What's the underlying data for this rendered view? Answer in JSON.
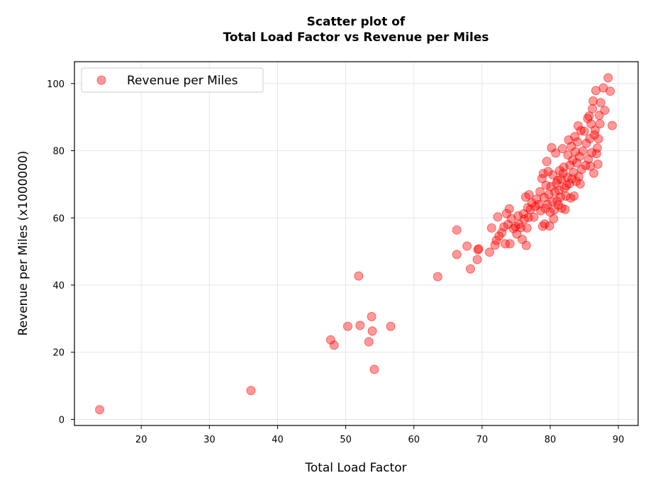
{
  "chart_data": {
    "type": "scatter",
    "title_line1": "Scatter plot of",
    "title_line2": "Total Load Factor vs Revenue per Miles",
    "xlabel": "Total Load Factor",
    "ylabel": "Revenue per Miles (x1000000)",
    "xlim": [
      10.2,
      92.9
    ],
    "ylim": [
      -1.8,
      106.5
    ],
    "xticks": [
      20,
      30,
      40,
      50,
      60,
      70,
      80,
      90
    ],
    "yticks": [
      0,
      20,
      40,
      60,
      80,
      100
    ],
    "grid": true,
    "legend_position": "upper-left",
    "colors": {
      "marker_fill": "#ff0000",
      "marker_opacity": 0.4
    },
    "series": [
      {
        "name": "Revenue per Miles",
        "points": [
          [
            13.9,
            2.9
          ],
          [
            36.1,
            8.6
          ],
          [
            47.8,
            23.7
          ],
          [
            48.3,
            22.1
          ],
          [
            50.3,
            27.7
          ],
          [
            51.9,
            42.7
          ],
          [
            52.1,
            28.0
          ],
          [
            53.4,
            23.1
          ],
          [
            53.8,
            30.6
          ],
          [
            53.9,
            26.3
          ],
          [
            54.2,
            14.9
          ],
          [
            56.6,
            27.7
          ],
          [
            63.5,
            42.5
          ],
          [
            66.3,
            56.4
          ],
          [
            66.3,
            49.1
          ],
          [
            67.8,
            51.6
          ],
          [
            68.3,
            44.8
          ],
          [
            69.3,
            47.6
          ],
          [
            69.4,
            50.5
          ],
          [
            69.5,
            50.8
          ],
          [
            71.1,
            49.8
          ],
          [
            71.4,
            57.0
          ],
          [
            71.9,
            51.9
          ],
          [
            72.1,
            53.3
          ],
          [
            72.3,
            60.3
          ],
          [
            72.5,
            54.6
          ],
          [
            72.9,
            55.6
          ],
          [
            73.2,
            57.3
          ],
          [
            73.4,
            52.3
          ],
          [
            73.6,
            61.3
          ],
          [
            73.8,
            58.0
          ],
          [
            74.0,
            62.7
          ],
          [
            74.1,
            52.3
          ],
          [
            74.3,
            59.8
          ],
          [
            74.6,
            56.8
          ],
          [
            74.9,
            57.4
          ],
          [
            75.1,
            55.2
          ],
          [
            75.3,
            60.6
          ],
          [
            75.4,
            58.1
          ],
          [
            75.7,
            57.1
          ],
          [
            75.9,
            53.6
          ],
          [
            76.1,
            61.2
          ],
          [
            76.2,
            59.6
          ],
          [
            76.4,
            66.2
          ],
          [
            76.5,
            51.8
          ],
          [
            76.6,
            57.0
          ],
          [
            76.7,
            63.0
          ],
          [
            76.8,
            60.1
          ],
          [
            76.9,
            66.9
          ],
          [
            77.1,
            62.5
          ],
          [
            77.3,
            64.5
          ],
          [
            77.6,
            60.2
          ],
          [
            77.8,
            63.4
          ],
          [
            78.0,
            65.6
          ],
          [
            78.3,
            64.0
          ],
          [
            78.5,
            67.8
          ],
          [
            78.6,
            62.1
          ],
          [
            78.8,
            71.7
          ],
          [
            78.9,
            57.5
          ],
          [
            79.0,
            73.2
          ],
          [
            79.1,
            66.1
          ],
          [
            79.2,
            58.2
          ],
          [
            79.3,
            62.8
          ],
          [
            79.4,
            69.7
          ],
          [
            79.5,
            76.8
          ],
          [
            79.6,
            64.0
          ],
          [
            79.7,
            73.8
          ],
          [
            79.8,
            67.0
          ],
          [
            79.9,
            57.6
          ],
          [
            80.0,
            61.7
          ],
          [
            80.1,
            69.3
          ],
          [
            80.2,
            80.9
          ],
          [
            80.3,
            64.9
          ],
          [
            80.4,
            72.8
          ],
          [
            80.5,
            59.7
          ],
          [
            80.6,
            62.4
          ],
          [
            80.7,
            67.7
          ],
          [
            80.8,
            79.3
          ],
          [
            80.9,
            70.3
          ],
          [
            81.0,
            65.0
          ],
          [
            81.1,
            71.2
          ],
          [
            81.2,
            63.8
          ],
          [
            81.3,
            68.2
          ],
          [
            81.4,
            74.1
          ],
          [
            81.5,
            66.2
          ],
          [
            81.6,
            71.5
          ],
          [
            81.7,
            62.9
          ],
          [
            81.8,
            80.6
          ],
          [
            81.9,
            73.3
          ],
          [
            82.0,
            75.1
          ],
          [
            82.1,
            68.9
          ],
          [
            82.2,
            62.5
          ],
          [
            82.3,
            66.5
          ],
          [
            82.4,
            69.6
          ],
          [
            82.5,
            72.1
          ],
          [
            82.6,
            78.7
          ],
          [
            82.7,
            83.2
          ],
          [
            82.8,
            70.2
          ],
          [
            82.9,
            75.7
          ],
          [
            83.0,
            65.9
          ],
          [
            83.1,
            81.3
          ],
          [
            83.2,
            71.6
          ],
          [
            83.3,
            77.2
          ],
          [
            83.4,
            73.5
          ],
          [
            83.5,
            66.5
          ],
          [
            83.6,
            84.2
          ],
          [
            83.7,
            79.7
          ],
          [
            83.8,
            70.9
          ],
          [
            83.9,
            76.4
          ],
          [
            84.0,
            82.6
          ],
          [
            84.1,
            87.4
          ],
          [
            84.2,
            72.3
          ],
          [
            84.3,
            78.3
          ],
          [
            84.4,
            70.1
          ],
          [
            84.5,
            86.0
          ],
          [
            84.6,
            74.4
          ],
          [
            84.8,
            79.9
          ],
          [
            85.0,
            85.8
          ],
          [
            85.2,
            75.6
          ],
          [
            85.3,
            82.2
          ],
          [
            85.5,
            89.6
          ],
          [
            85.6,
            77.5
          ],
          [
            85.7,
            90.3
          ],
          [
            85.8,
            83.6
          ],
          [
            85.9,
            75.4
          ],
          [
            86.0,
            88.0
          ],
          [
            86.1,
            79.4
          ],
          [
            86.2,
            92.5
          ],
          [
            86.3,
            94.8
          ],
          [
            86.4,
            73.3
          ],
          [
            86.5,
            84.7
          ],
          [
            86.6,
            86.1
          ],
          [
            86.7,
            97.9
          ],
          [
            86.8,
            79.1
          ],
          [
            86.9,
            80.8
          ],
          [
            87.0,
            76.0
          ],
          [
            87.1,
            83.5
          ],
          [
            87.2,
            90.5
          ],
          [
            87.3,
            88.0
          ],
          [
            87.4,
            94.3
          ],
          [
            87.8,
            98.7
          ],
          [
            88.0,
            92.0
          ],
          [
            88.5,
            101.7
          ],
          [
            88.8,
            97.7
          ],
          [
            89.1,
            87.5
          ]
        ]
      }
    ]
  }
}
